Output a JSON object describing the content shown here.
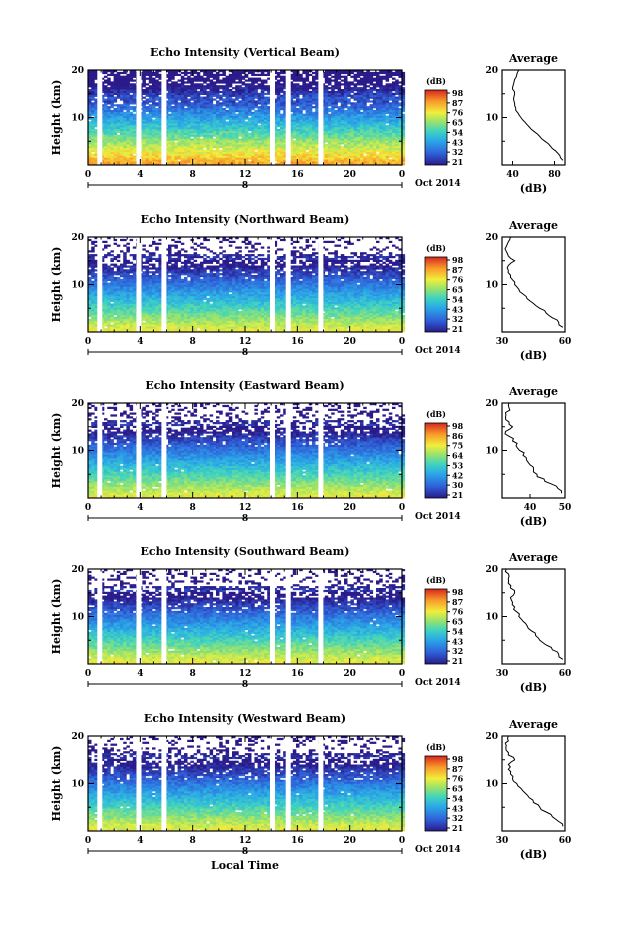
{
  "chart_data": [
    {
      "type": "heatmap",
      "title": "Echo Intensity (Vertical Beam)",
      "ylabel": "Height (km)",
      "xticks": [
        "0",
        "4",
        "8",
        "12",
        "16",
        "20",
        "0"
      ],
      "yticks": [
        "10",
        "20"
      ],
      "date_label": "Oct 2014",
      "day_label": "8",
      "colorbar": {
        "label": "(dB)",
        "ticks": [
          "98",
          "87",
          "76",
          "65",
          "54",
          "43",
          "32",
          "21"
        ]
      },
      "profile": {
        "title": "Average",
        "xticks": [
          "40",
          "80"
        ],
        "xlabel": "(dB)",
        "yticks": [
          "10",
          "20"
        ],
        "xlim": [
          30,
          90
        ],
        "heights": [
          1,
          2,
          3,
          4,
          5,
          6,
          7,
          8,
          9,
          10,
          11,
          12,
          13,
          14,
          15,
          16,
          17,
          18,
          19,
          20
        ],
        "values": [
          88,
          85,
          81,
          76,
          71,
          66,
          61,
          56,
          52,
          48,
          45,
          43,
          42,
          41,
          42,
          40,
          41,
          42,
          44,
          46
        ]
      }
    },
    {
      "type": "heatmap",
      "title": "Echo Intensity (Northward Beam)",
      "ylabel": "Height (km)",
      "xticks": [
        "0",
        "4",
        "8",
        "12",
        "16",
        "20",
        "0"
      ],
      "yticks": [
        "10",
        "20"
      ],
      "date_label": "Oct 2014",
      "day_label": "8",
      "colorbar": {
        "label": "(dB)",
        "ticks": [
          "98",
          "87",
          "76",
          "65",
          "54",
          "43",
          "32",
          "21"
        ]
      },
      "profile": {
        "title": "Average",
        "xticks": [
          "30",
          "60"
        ],
        "xlabel": "(dB)",
        "yticks": [
          "10",
          "20"
        ],
        "xlim": [
          30,
          60
        ],
        "heights": [
          1,
          2,
          3,
          4,
          5,
          6,
          7,
          8,
          9,
          10,
          11,
          12,
          13,
          14,
          15,
          16,
          17,
          18,
          19,
          20
        ],
        "values": [
          59,
          57,
          54,
          51,
          48,
          45,
          42,
          40,
          38,
          36,
          35,
          34,
          33,
          33,
          36,
          33,
          32,
          32,
          33,
          34
        ]
      }
    },
    {
      "type": "heatmap",
      "title": "Echo Intensity (Eastward Beam)",
      "ylabel": "Height (km)",
      "xticks": [
        "0",
        "4",
        "8",
        "12",
        "16",
        "20",
        "0"
      ],
      "yticks": [
        "10",
        "20"
      ],
      "date_label": "Oct 2014",
      "day_label": "8",
      "colorbar": {
        "label": "(dB)",
        "ticks": [
          "98",
          "86",
          "75",
          "64",
          "53",
          "42",
          "30",
          "21"
        ]
      },
      "profile": {
        "title": "Average",
        "xticks": [
          "40",
          "50"
        ],
        "xlabel": "(dB)",
        "yticks": [
          "10",
          "20"
        ],
        "xlim": [
          32,
          50
        ],
        "heights": [
          1,
          2,
          3,
          4,
          5,
          6,
          7,
          8,
          9,
          10,
          11,
          12,
          13,
          14,
          15,
          16,
          17,
          18,
          19,
          20
        ],
        "values": [
          49,
          48,
          46,
          44,
          42,
          41,
          40,
          39,
          38,
          37,
          36,
          35,
          34,
          33,
          35,
          34,
          33,
          33,
          34,
          34
        ]
      }
    },
    {
      "type": "heatmap",
      "title": "Echo Intensity (Southward Beam)",
      "ylabel": "Height (km)",
      "xticks": [
        "0",
        "4",
        "8",
        "12",
        "16",
        "20",
        "0"
      ],
      "yticks": [
        "10",
        "20"
      ],
      "date_label": "Oct 2014",
      "day_label": "8",
      "colorbar": {
        "label": "(dB)",
        "ticks": [
          "98",
          "87",
          "76",
          "65",
          "54",
          "43",
          "32",
          "21"
        ]
      },
      "profile": {
        "title": "Average",
        "xticks": [
          "30",
          "60"
        ],
        "xlabel": "(dB)",
        "yticks": [
          "10",
          "20"
        ],
        "xlim": [
          30,
          60
        ],
        "heights": [
          1,
          2,
          3,
          4,
          5,
          6,
          7,
          8,
          9,
          10,
          11,
          12,
          13,
          14,
          15,
          16,
          17,
          18,
          19,
          20
        ],
        "values": [
          59,
          57,
          54,
          51,
          48,
          46,
          44,
          42,
          40,
          38,
          37,
          36,
          35,
          34,
          36,
          34,
          33,
          33,
          33,
          32
        ]
      }
    },
    {
      "type": "heatmap",
      "title": "Echo Intensity (Westward Beam)",
      "ylabel": "Height (km)",
      "xlabel": "Local Time",
      "xticks": [
        "0",
        "4",
        "8",
        "12",
        "16",
        "20",
        "0"
      ],
      "yticks": [
        "10",
        "20"
      ],
      "date_label": "Oct 2014",
      "day_label": "8",
      "colorbar": {
        "label": "(dB)",
        "ticks": [
          "98",
          "87",
          "76",
          "65",
          "54",
          "43",
          "32",
          "21"
        ]
      },
      "profile": {
        "title": "Average",
        "xticks": [
          "30",
          "60"
        ],
        "xlabel": "(dB)",
        "yticks": [
          "10",
          "20"
        ],
        "xlim": [
          30,
          60
        ],
        "heights": [
          1,
          2,
          3,
          4,
          5,
          6,
          7,
          8,
          9,
          10,
          11,
          12,
          13,
          14,
          15,
          16,
          17,
          18,
          19,
          20
        ],
        "values": [
          59,
          57,
          54,
          51,
          48,
          45,
          43,
          41,
          39,
          37,
          35,
          34,
          33,
          33,
          36,
          33,
          32,
          32,
          33,
          33
        ]
      }
    }
  ]
}
